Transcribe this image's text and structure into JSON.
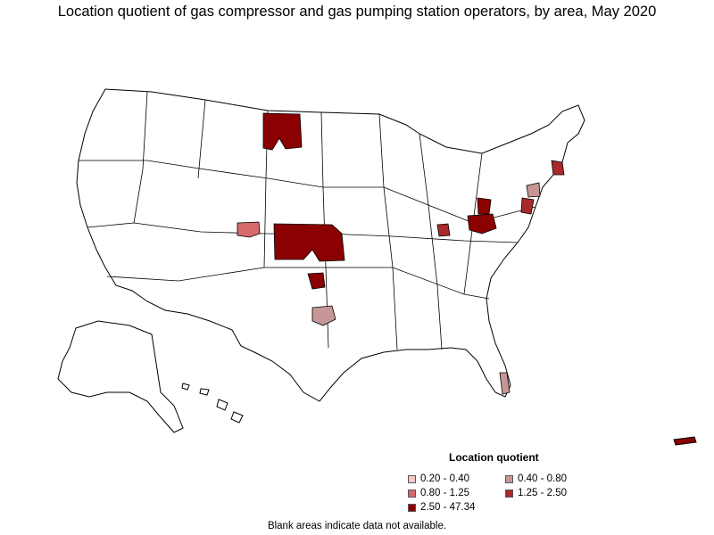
{
  "title": "Location quotient of gas compressor and gas pumping station operators, by area, May 2020",
  "legend": {
    "title": "Location quotient",
    "items": [
      {
        "label": "0.20 - 0.40",
        "color": "#f5c9c9"
      },
      {
        "label": "0.40 - 0.80",
        "color": "#c79696"
      },
      {
        "label": "0.80 - 1.25",
        "color": "#d56b6b"
      },
      {
        "label": "1.25 - 2.50",
        "color": "#a82a2a"
      },
      {
        "label": "2.50 - 47.34",
        "color": "#8b0000"
      }
    ]
  },
  "footnote": "Blank areas indicate data not available.",
  "map": {
    "outline_color": "#000000",
    "background_color": "#ffffff"
  }
}
